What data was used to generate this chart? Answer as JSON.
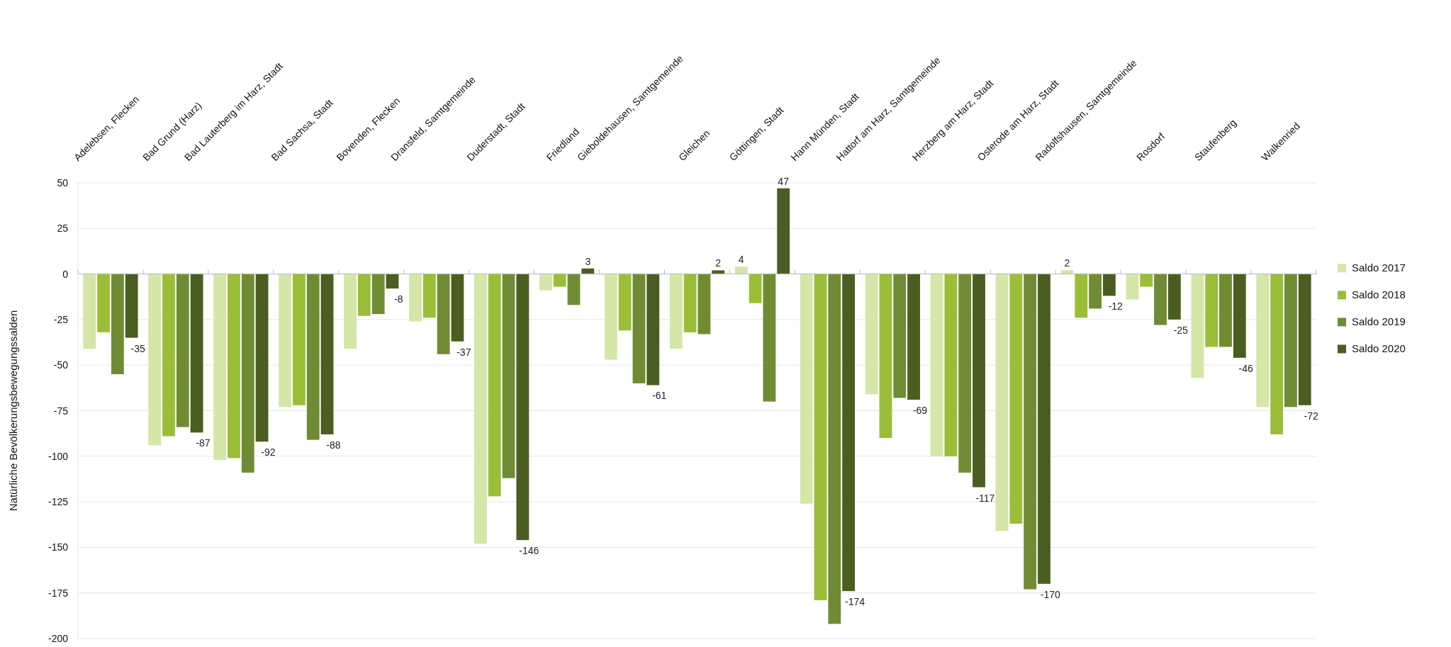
{
  "chart_data": {
    "type": "bar",
    "ylabel": "Natürliche Bevölkerungsbewegungssalden",
    "categories": [
      "Adelebsen, Flecken",
      "Bad Grund (Harz)",
      "Bad Lauterberg im Harz, Stadt",
      "Bad Sachsa, Stadt",
      "Bovenden, Flecken",
      "Dransfeld, Samtgemeinde",
      "Duderstadt, Stadt",
      "Friedland",
      "Gieboldehausen, Samtgemeinde",
      "Gleichen",
      "Göttingen, Stadt",
      "Hann Münden, Stadt",
      "Hattorf am Harz, Samtgemeinde",
      "Herzberg am Harz, Stadt",
      "Osterode am Harz, Stadt",
      "Radolfshausen, Samtgemeinde",
      "Rosdorf",
      "Staufenberg",
      "Walkenried"
    ],
    "series": [
      {
        "name": "Saldo 2017",
        "color": "#d4e6a8",
        "values": [
          -41,
          -94,
          -102,
          -73,
          -41,
          -26,
          -148,
          -9,
          -47,
          -41,
          4,
          -126,
          -66,
          -100,
          -141,
          2,
          -14,
          -57,
          -73
        ],
        "value_labels": [
          null,
          null,
          null,
          null,
          null,
          null,
          null,
          null,
          null,
          null,
          "4",
          null,
          null,
          null,
          null,
          "2",
          null,
          null,
          null
        ]
      },
      {
        "name": "Saldo 2018",
        "color": "#9abe38",
        "values": [
          -32,
          -89,
          -101,
          -72,
          -23,
          -24,
          -122,
          -7,
          -31,
          -32,
          -16,
          -179,
          -90,
          -100,
          -137,
          -24,
          -7,
          -40,
          -88
        ]
      },
      {
        "name": "Saldo 2019",
        "color": "#6f8c35",
        "values": [
          -55,
          -84,
          -109,
          -91,
          -22,
          -44,
          -112,
          -17,
          -60,
          -33,
          -70,
          -192,
          -68,
          -109,
          -173,
          -19,
          -28,
          -40,
          -73
        ]
      },
      {
        "name": "Saldo 2020",
        "color": "#4a5e22",
        "values": [
          -35,
          -87,
          -92,
          -88,
          -8,
          -37,
          -146,
          3,
          -61,
          2,
          47,
          -174,
          -69,
          -117,
          -170,
          -12,
          -25,
          -46,
          -72
        ],
        "value_labels": [
          "-35",
          "-87",
          "-92",
          "-88",
          "-8",
          "-37",
          "-146",
          "3",
          "-61",
          "2",
          "47",
          "-174",
          "-69",
          "-117",
          "-170",
          "-12",
          "-25",
          "-46",
          "-72"
        ]
      }
    ],
    "ylim": [
      -200,
      50
    ],
    "yticks": [
      -200,
      -175,
      -150,
      -125,
      -100,
      -75,
      -50,
      -25,
      0,
      25,
      50
    ],
    "grid": "y",
    "legend": "right"
  }
}
